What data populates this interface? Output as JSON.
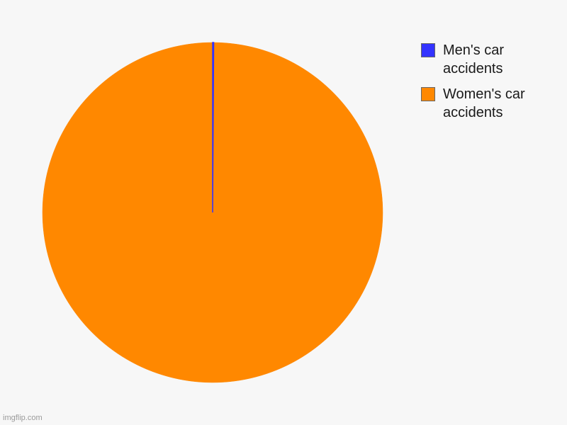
{
  "chart_data": {
    "type": "pie",
    "title": "",
    "labels": [
      "Men's car accidents",
      "Women's car accidents"
    ],
    "values": [
      0.1,
      99.9
    ],
    "colors": [
      "#3333ff",
      "#ff8800"
    ],
    "legend_position": "right",
    "start_angle": "top (12 o'clock), clockwise"
  },
  "legend": {
    "items": [
      {
        "label": "Men's car accidents",
        "color": "#3333ff"
      },
      {
        "label": "Women's car accidents",
        "color": "#ff8800"
      }
    ]
  },
  "watermark": "imgflip.com"
}
